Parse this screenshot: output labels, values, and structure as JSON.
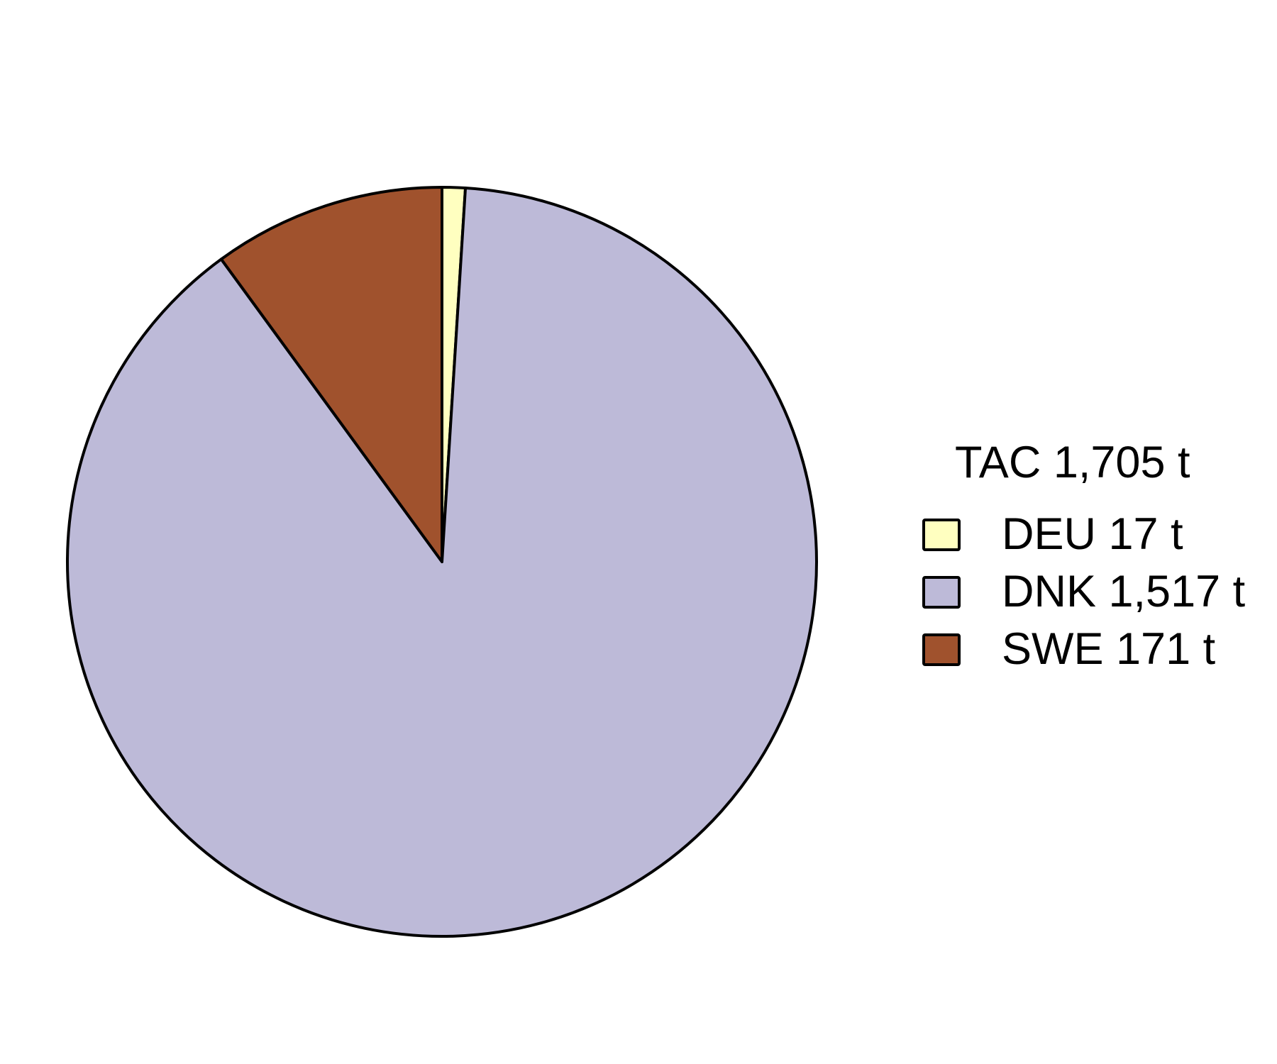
{
  "chart_data": {
    "type": "pie",
    "title": "",
    "legend_title": "TAC 1,705 t",
    "legend_position": "right",
    "start": "top",
    "direction": "clockwise",
    "slices": [
      {
        "key": "DEU",
        "label": "DEU 17 t",
        "value": 17,
        "color": "#FFFFC0"
      },
      {
        "key": "DNK",
        "label": "DNK 1,517 t",
        "value": 1517,
        "color": "#BDBAD8"
      },
      {
        "key": "SWE",
        "label": "SWE 171 t",
        "value": 171,
        "color": "#A0522D"
      }
    ]
  }
}
